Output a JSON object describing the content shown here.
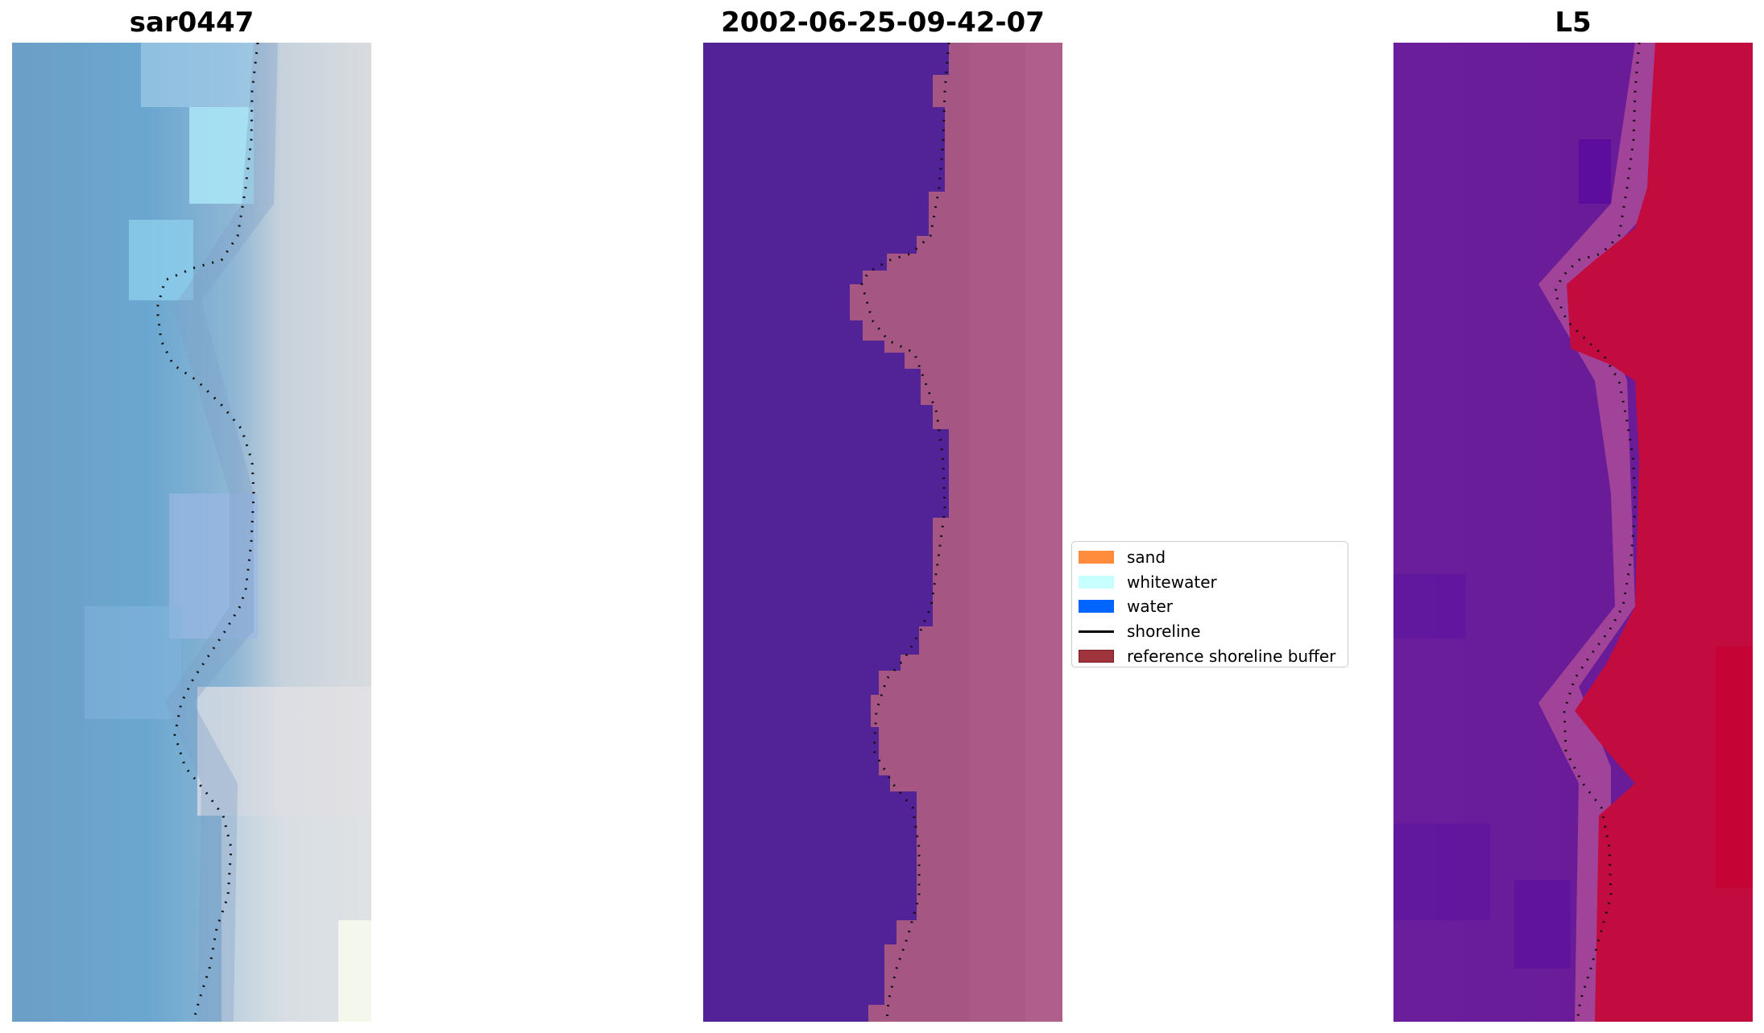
{
  "panels": [
    {
      "title": "sar0447",
      "type": "rgb-satellite-image"
    },
    {
      "title": "2002-06-25-09-42-07",
      "type": "classified-image"
    },
    {
      "title": "L5",
      "type": "mndwi-image"
    }
  ],
  "legend": {
    "items": [
      {
        "label": "sand",
        "color": "#ff8c3c",
        "kind": "patch"
      },
      {
        "label": "whitewater",
        "color": "#c8ffff",
        "kind": "patch"
      },
      {
        "label": "water",
        "color": "#0064ff",
        "kind": "patch"
      },
      {
        "label": "shoreline",
        "color": "#000000",
        "kind": "line"
      },
      {
        "label": "reference shoreline buffer",
        "color": "#a0343c",
        "kind": "patch"
      }
    ]
  },
  "colors": {
    "classified_water": "#522297",
    "classified_buffer": "#a65683",
    "mndwi_water": "#6a1d9a",
    "mndwi_land": "#c20b3f"
  }
}
